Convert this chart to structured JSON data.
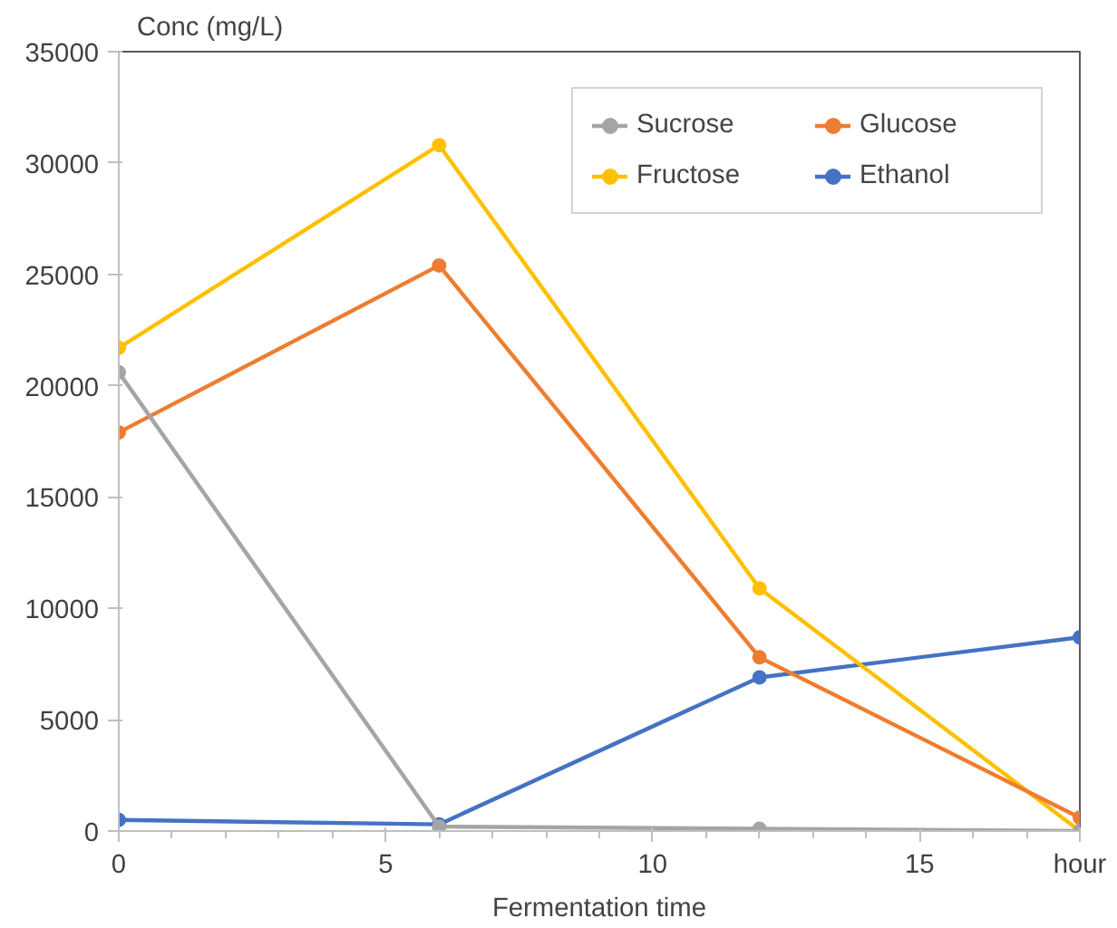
{
  "chart_data": {
    "type": "line",
    "xlabel": "Fermentation time",
    "ylabel": "Conc (mg/L)",
    "x": [
      0,
      6,
      12,
      18
    ],
    "series": [
      {
        "name": "Sucrose",
        "color": "#a5a5a5",
        "values": [
          20600,
          200,
          100,
          0
        ]
      },
      {
        "name": "Glucose",
        "color": "#ed7d31",
        "values": [
          17900,
          25400,
          7800,
          600
        ]
      },
      {
        "name": "Fructose",
        "color": "#ffc000",
        "values": [
          21700,
          30800,
          10900,
          0
        ]
      },
      {
        "name": "Ethanol",
        "color": "#4472c4",
        "values": [
          500,
          300,
          6900,
          8700
        ]
      }
    ],
    "xlim": [
      0,
      18
    ],
    "xticks": [
      0,
      5,
      10,
      15,
      {
        "value": 18,
        "label": "hour"
      }
    ],
    "ylim": [
      0,
      35000
    ],
    "yticks": [
      0,
      5000,
      10000,
      15000,
      20000,
      25000,
      30000,
      35000
    ],
    "grid": false,
    "legend": "top right",
    "marker": "circle",
    "line_style": "solid"
  }
}
